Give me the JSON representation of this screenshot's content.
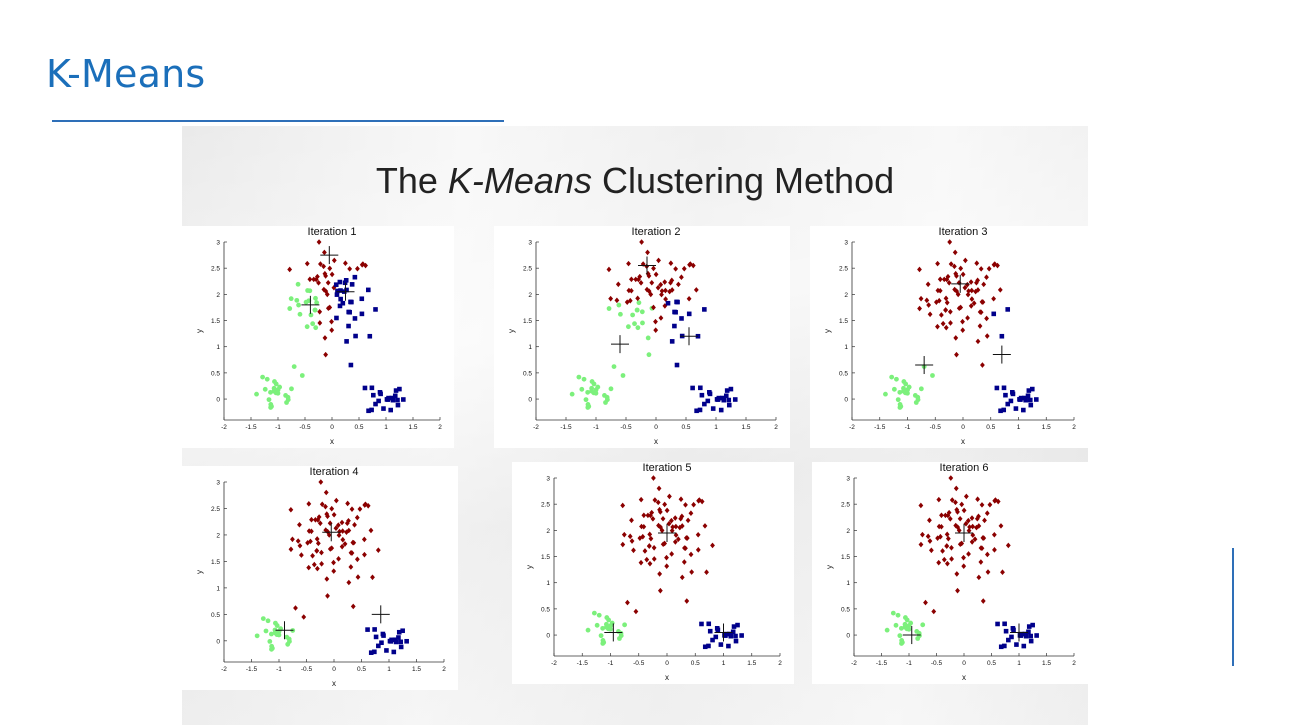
{
  "slide": {
    "title": "K-Means"
  },
  "figure": {
    "heading_before": "The ",
    "heading_italic": "K-Means",
    "heading_after": " Clustering Method"
  },
  "colors": {
    "title": "#1b6fba",
    "rule": "#2e6fb8",
    "cluster_top": "#8b0000",
    "cluster_left": "#7cf07c",
    "cluster_right": "#00008b"
  },
  "chart_data": [
    {
      "type": "scatter",
      "title": "Iteration 1",
      "xlabel": "x",
      "ylabel": "y",
      "xlim": [
        -2,
        2
      ],
      "ylim": [
        -0.4,
        3
      ],
      "xticks": [
        "-2",
        "-1.5",
        "-1",
        "-0.5",
        "0",
        "0.5",
        "1",
        "1.5",
        "2"
      ],
      "yticks": [
        "0",
        "0.5",
        "1",
        "1.5",
        "2",
        "2.5",
        "3"
      ],
      "centroids": [
        [
          -0.05,
          2.75
        ],
        [
          -0.4,
          1.8
        ],
        [
          0.25,
          2.05
        ]
      ],
      "assignment": "iteration1"
    },
    {
      "type": "scatter",
      "title": "Iteration 2",
      "xlabel": "x",
      "ylabel": "y",
      "xlim": [
        -2,
        2
      ],
      "ylim": [
        -0.4,
        3
      ],
      "xticks": [
        "-2",
        "-1.5",
        "-1",
        "-0.5",
        "0",
        "0.5",
        "1",
        "1.5",
        "2"
      ],
      "yticks": [
        "0",
        "0.5",
        "1",
        "1.5",
        "2",
        "2.5",
        "3"
      ],
      "centroids": [
        [
          -0.15,
          2.55
        ],
        [
          -0.6,
          1.05
        ],
        [
          0.55,
          1.2
        ]
      ],
      "assignment": "iteration2"
    },
    {
      "type": "scatter",
      "title": "Iteration 3",
      "xlabel": "x",
      "ylabel": "y",
      "xlim": [
        -2,
        2
      ],
      "ylim": [
        -0.4,
        3
      ],
      "xticks": [
        "-2",
        "-1.5",
        "-1",
        "-0.5",
        "0",
        "0.5",
        "1",
        "1.5",
        "2"
      ],
      "yticks": [
        "0",
        "0.5",
        "1",
        "1.5",
        "2",
        "2.5",
        "3"
      ],
      "centroids": [
        [
          -0.05,
          2.2
        ],
        [
          -0.7,
          0.65
        ],
        [
          0.7,
          0.85
        ]
      ],
      "assignment": "iteration3"
    },
    {
      "type": "scatter",
      "title": "Iteration 4",
      "xlabel": "x",
      "ylabel": "y",
      "xlim": [
        -2,
        2
      ],
      "ylim": [
        -0.4,
        3
      ],
      "xticks": [
        "-2",
        "-1.5",
        "-1",
        "-0.5",
        "0",
        "0.5",
        "1",
        "1.5",
        "2"
      ],
      "yticks": [
        "0",
        "0.5",
        "1",
        "1.5",
        "2",
        "2.5",
        "3"
      ],
      "centroids": [
        [
          -0.05,
          2.05
        ],
        [
          -0.9,
          0.2
        ],
        [
          0.85,
          0.5
        ]
      ],
      "assignment": "final"
    },
    {
      "type": "scatter",
      "title": "Iteration 5",
      "xlabel": "x",
      "ylabel": "y",
      "xlim": [
        -2,
        2
      ],
      "ylim": [
        -0.4,
        3
      ],
      "xticks": [
        "-2",
        "-1.5",
        "-1",
        "-0.5",
        "0",
        "0.5",
        "1",
        "1.5",
        "2"
      ],
      "yticks": [
        "0",
        "0.5",
        "1",
        "1.5",
        "2",
        "2.5",
        "3"
      ],
      "centroids": [
        [
          0.0,
          1.95
        ],
        [
          -0.95,
          0.05
        ],
        [
          1.0,
          0.05
        ]
      ],
      "assignment": "final"
    },
    {
      "type": "scatter",
      "title": "Iteration 6",
      "xlabel": "x",
      "ylabel": "y",
      "xlim": [
        -2,
        2
      ],
      "ylim": [
        -0.4,
        3
      ],
      "xticks": [
        "-2",
        "-1.5",
        "-1",
        "-0.5",
        "0",
        "0.5",
        "1",
        "1.5",
        "2"
      ],
      "yticks": [
        "0",
        "0.5",
        "1",
        "1.5",
        "2",
        "2.5",
        "3"
      ],
      "centroids": [
        [
          0.0,
          1.95
        ],
        [
          -0.95,
          0.0
        ],
        [
          1.0,
          0.05
        ]
      ],
      "assignment": "final"
    }
  ]
}
